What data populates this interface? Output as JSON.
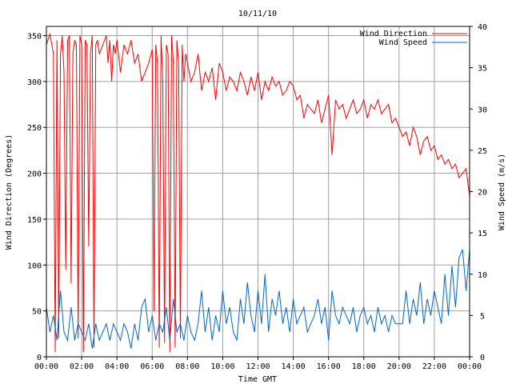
{
  "chart_data": {
    "type": "line",
    "title": "10/11/10",
    "xlabel": "Time GMT",
    "ylabel_left": "Wind Direction (Degrees)",
    "ylabel_right": "Wind Speed (m/s)",
    "x_ticks": [
      "00:00",
      "02:00",
      "04:00",
      "06:00",
      "08:00",
      "10:00",
      "12:00",
      "14:00",
      "16:00",
      "18:00",
      "20:00",
      "22:00",
      "00:00"
    ],
    "y_left_ticks": [
      0,
      50,
      100,
      150,
      200,
      250,
      300,
      350
    ],
    "y_right_ticks": [
      0,
      5,
      10,
      15,
      20,
      25,
      30,
      35,
      40
    ],
    "x_range_hours": [
      0,
      24
    ],
    "ylim_left": [
      0,
      360
    ],
    "ylim_right": [
      0,
      40
    ],
    "grid": true,
    "legend_position": "top-right",
    "series": [
      {
        "name": "Wind Direction",
        "axis": "left",
        "color": "#ff0000",
        "x": [
          0.0,
          0.2,
          0.4,
          0.5,
          0.6,
          0.7,
          0.8,
          0.9,
          1.0,
          1.1,
          1.2,
          1.3,
          1.4,
          1.5,
          1.6,
          1.7,
          1.8,
          1.9,
          2.0,
          2.1,
          2.2,
          2.3,
          2.4,
          2.5,
          2.6,
          2.7,
          2.8,
          2.9,
          3.0,
          3.2,
          3.4,
          3.5,
          3.6,
          3.7,
          3.8,
          3.9,
          4.0,
          4.2,
          4.4,
          4.6,
          4.8,
          5.0,
          5.2,
          5.4,
          5.6,
          5.8,
          6.0,
          6.1,
          6.2,
          6.3,
          6.4,
          6.5,
          6.6,
          6.7,
          6.8,
          6.9,
          7.0,
          7.1,
          7.2,
          7.3,
          7.4,
          7.5,
          7.6,
          7.7,
          7.8,
          7.9,
          8.0,
          8.2,
          8.4,
          8.6,
          8.8,
          9.0,
          9.2,
          9.4,
          9.6,
          9.8,
          10.0,
          10.2,
          10.4,
          10.6,
          10.8,
          11.0,
          11.2,
          11.4,
          11.6,
          11.8,
          12.0,
          12.2,
          12.4,
          12.6,
          12.8,
          13.0,
          13.2,
          13.4,
          13.6,
          13.8,
          14.0,
          14.2,
          14.4,
          14.6,
          14.8,
          15.0,
          15.2,
          15.4,
          15.6,
          15.8,
          16.0,
          16.2,
          16.4,
          16.6,
          16.8,
          17.0,
          17.2,
          17.4,
          17.6,
          17.8,
          18.0,
          18.2,
          18.4,
          18.6,
          18.8,
          19.0,
          19.2,
          19.4,
          19.6,
          19.8,
          20.0,
          20.2,
          20.4,
          20.6,
          20.8,
          21.0,
          21.2,
          21.4,
          21.6,
          21.8,
          22.0,
          22.2,
          22.4,
          22.6,
          22.8,
          23.0,
          23.2,
          23.4,
          23.6,
          23.8,
          24.0
        ],
        "values": [
          340,
          352,
          330,
          5,
          345,
          20,
          330,
          350,
          310,
          95,
          345,
          350,
          80,
          330,
          345,
          340,
          20,
          350,
          340,
          5,
          345,
          340,
          120,
          330,
          350,
          10,
          340,
          345,
          330,
          340,
          350,
          320,
          345,
          300,
          340,
          330,
          345,
          310,
          340,
          330,
          345,
          320,
          330,
          300,
          310,
          320,
          335,
          50,
          340,
          320,
          10,
          350,
          300,
          15,
          340,
          330,
          5,
          350,
          320,
          10,
          345,
          320,
          20,
          340,
          300,
          330,
          320,
          300,
          310,
          330,
          290,
          310,
          300,
          315,
          280,
          320,
          310,
          290,
          305,
          300,
          290,
          310,
          300,
          285,
          305,
          290,
          310,
          280,
          300,
          290,
          305,
          295,
          300,
          285,
          290,
          300,
          295,
          280,
          285,
          260,
          275,
          270,
          265,
          280,
          255,
          270,
          285,
          220,
          280,
          270,
          275,
          260,
          270,
          280,
          265,
          270,
          280,
          260,
          275,
          270,
          280,
          265,
          270,
          275,
          255,
          260,
          250,
          240,
          245,
          230,
          250,
          240,
          220,
          235,
          240,
          225,
          230,
          215,
          220,
          210,
          215,
          205,
          210,
          195,
          200,
          205,
          175
        ]
      },
      {
        "name": "Wind Speed",
        "axis": "right",
        "color": "#0066cc",
        "x": [
          0.0,
          0.2,
          0.4,
          0.6,
          0.8,
          1.0,
          1.2,
          1.4,
          1.6,
          1.8,
          2.0,
          2.2,
          2.4,
          2.6,
          2.8,
          3.0,
          3.2,
          3.4,
          3.6,
          3.8,
          4.0,
          4.2,
          4.4,
          4.6,
          4.8,
          5.0,
          5.2,
          5.4,
          5.6,
          5.8,
          6.0,
          6.2,
          6.4,
          6.6,
          6.8,
          7.0,
          7.2,
          7.4,
          7.6,
          7.8,
          8.0,
          8.2,
          8.4,
          8.6,
          8.8,
          9.0,
          9.2,
          9.4,
          9.6,
          9.8,
          10.0,
          10.2,
          10.4,
          10.6,
          10.8,
          11.0,
          11.2,
          11.4,
          11.6,
          11.8,
          12.0,
          12.2,
          12.4,
          12.6,
          12.8,
          13.0,
          13.2,
          13.4,
          13.6,
          13.8,
          14.0,
          14.2,
          14.4,
          14.6,
          14.8,
          15.0,
          15.2,
          15.4,
          15.6,
          15.8,
          16.0,
          16.2,
          16.4,
          16.6,
          16.8,
          17.0,
          17.2,
          17.4,
          17.6,
          17.8,
          18.0,
          18.2,
          18.4,
          18.6,
          18.8,
          19.0,
          19.2,
          19.4,
          19.6,
          19.8,
          20.0,
          20.2,
          20.4,
          20.6,
          20.8,
          21.0,
          21.2,
          21.4,
          21.6,
          21.8,
          22.0,
          22.2,
          22.4,
          22.6,
          22.8,
          23.0,
          23.2,
          23.4,
          23.6,
          23.8,
          24.0
        ],
        "values": [
          6,
          3,
          5,
          2,
          8,
          3,
          2,
          6,
          2,
          4,
          3,
          2,
          4,
          1,
          4,
          2,
          3,
          4,
          2,
          4,
          3,
          2,
          4,
          3,
          1,
          4,
          2,
          6,
          7,
          3,
          5,
          2,
          4,
          3,
          6,
          2,
          7,
          3,
          4,
          2,
          5,
          3,
          2,
          4,
          8,
          3,
          6,
          2,
          5,
          3,
          8,
          4,
          6,
          3,
          2,
          7,
          4,
          9,
          5,
          3,
          8,
          4,
          10,
          3,
          7,
          5,
          8,
          4,
          6,
          3,
          7,
          4,
          5,
          6,
          3,
          4,
          5,
          7,
          4,
          6,
          2,
          8,
          5,
          4,
          6,
          5,
          4,
          6,
          3,
          5,
          6,
          4,
          5,
          3,
          6,
          4,
          5,
          3,
          5,
          4,
          4,
          4,
          8,
          4,
          7,
          5,
          9,
          4,
          7,
          5,
          8,
          6,
          4,
          10,
          5,
          11,
          6,
          12,
          13,
          8,
          13
        ]
      }
    ]
  }
}
